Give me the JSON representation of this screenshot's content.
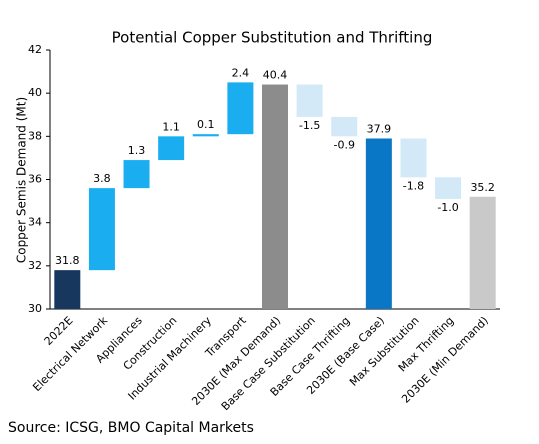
{
  "chart_data": {
    "type": "waterfall",
    "title": "Potential Copper Substitution and Thrifting",
    "y_label": "Copper Semis Demand (Mt)",
    "categories": [
      "2022E",
      "Electrical Network",
      "Appliances",
      "Construction",
      "Industrial Machinery",
      "Transport",
      "2030E (Max Demand)",
      "Base Case Substitution",
      "Base Case Thrifting",
      "2030E (Base Case)",
      "Max Substitution",
      "Max Thrifting",
      "2030E (Min Demand)"
    ],
    "values": [
      31.8,
      3.8,
      1.3,
      1.1,
      0.1,
      2.4,
      40.4,
      -1.5,
      -0.9,
      37.9,
      -1.8,
      -1.0,
      35.2
    ],
    "value_labels": [
      "31.8",
      "3.8",
      "1.3",
      "1.1",
      "0.1",
      "2.4",
      "40.4",
      "-1.5",
      "-0.9",
      "37.9",
      "-1.8",
      "-1.0",
      "35.2"
    ],
    "measure": [
      "absolute",
      "relative",
      "relative",
      "relative",
      "relative",
      "relative",
      "absolute",
      "relative",
      "relative",
      "absolute",
      "relative",
      "relative",
      "absolute"
    ],
    "colors": [
      "#17375e",
      "#1aadf0",
      "#1aadf0",
      "#1aadf0",
      "#1aadf0",
      "#1aadf0",
      "#8c8c8c",
      "#d3e9f7",
      "#d3e9f7",
      "#0a76c6",
      "#d3e9f7",
      "#d3e9f7",
      "#c9c9c9"
    ],
    "ylim": [
      30,
      42
    ],
    "yticks": [
      30,
      32,
      34,
      36,
      38,
      40,
      42
    ],
    "source": "Source: ICSG, BMO Capital Markets"
  }
}
